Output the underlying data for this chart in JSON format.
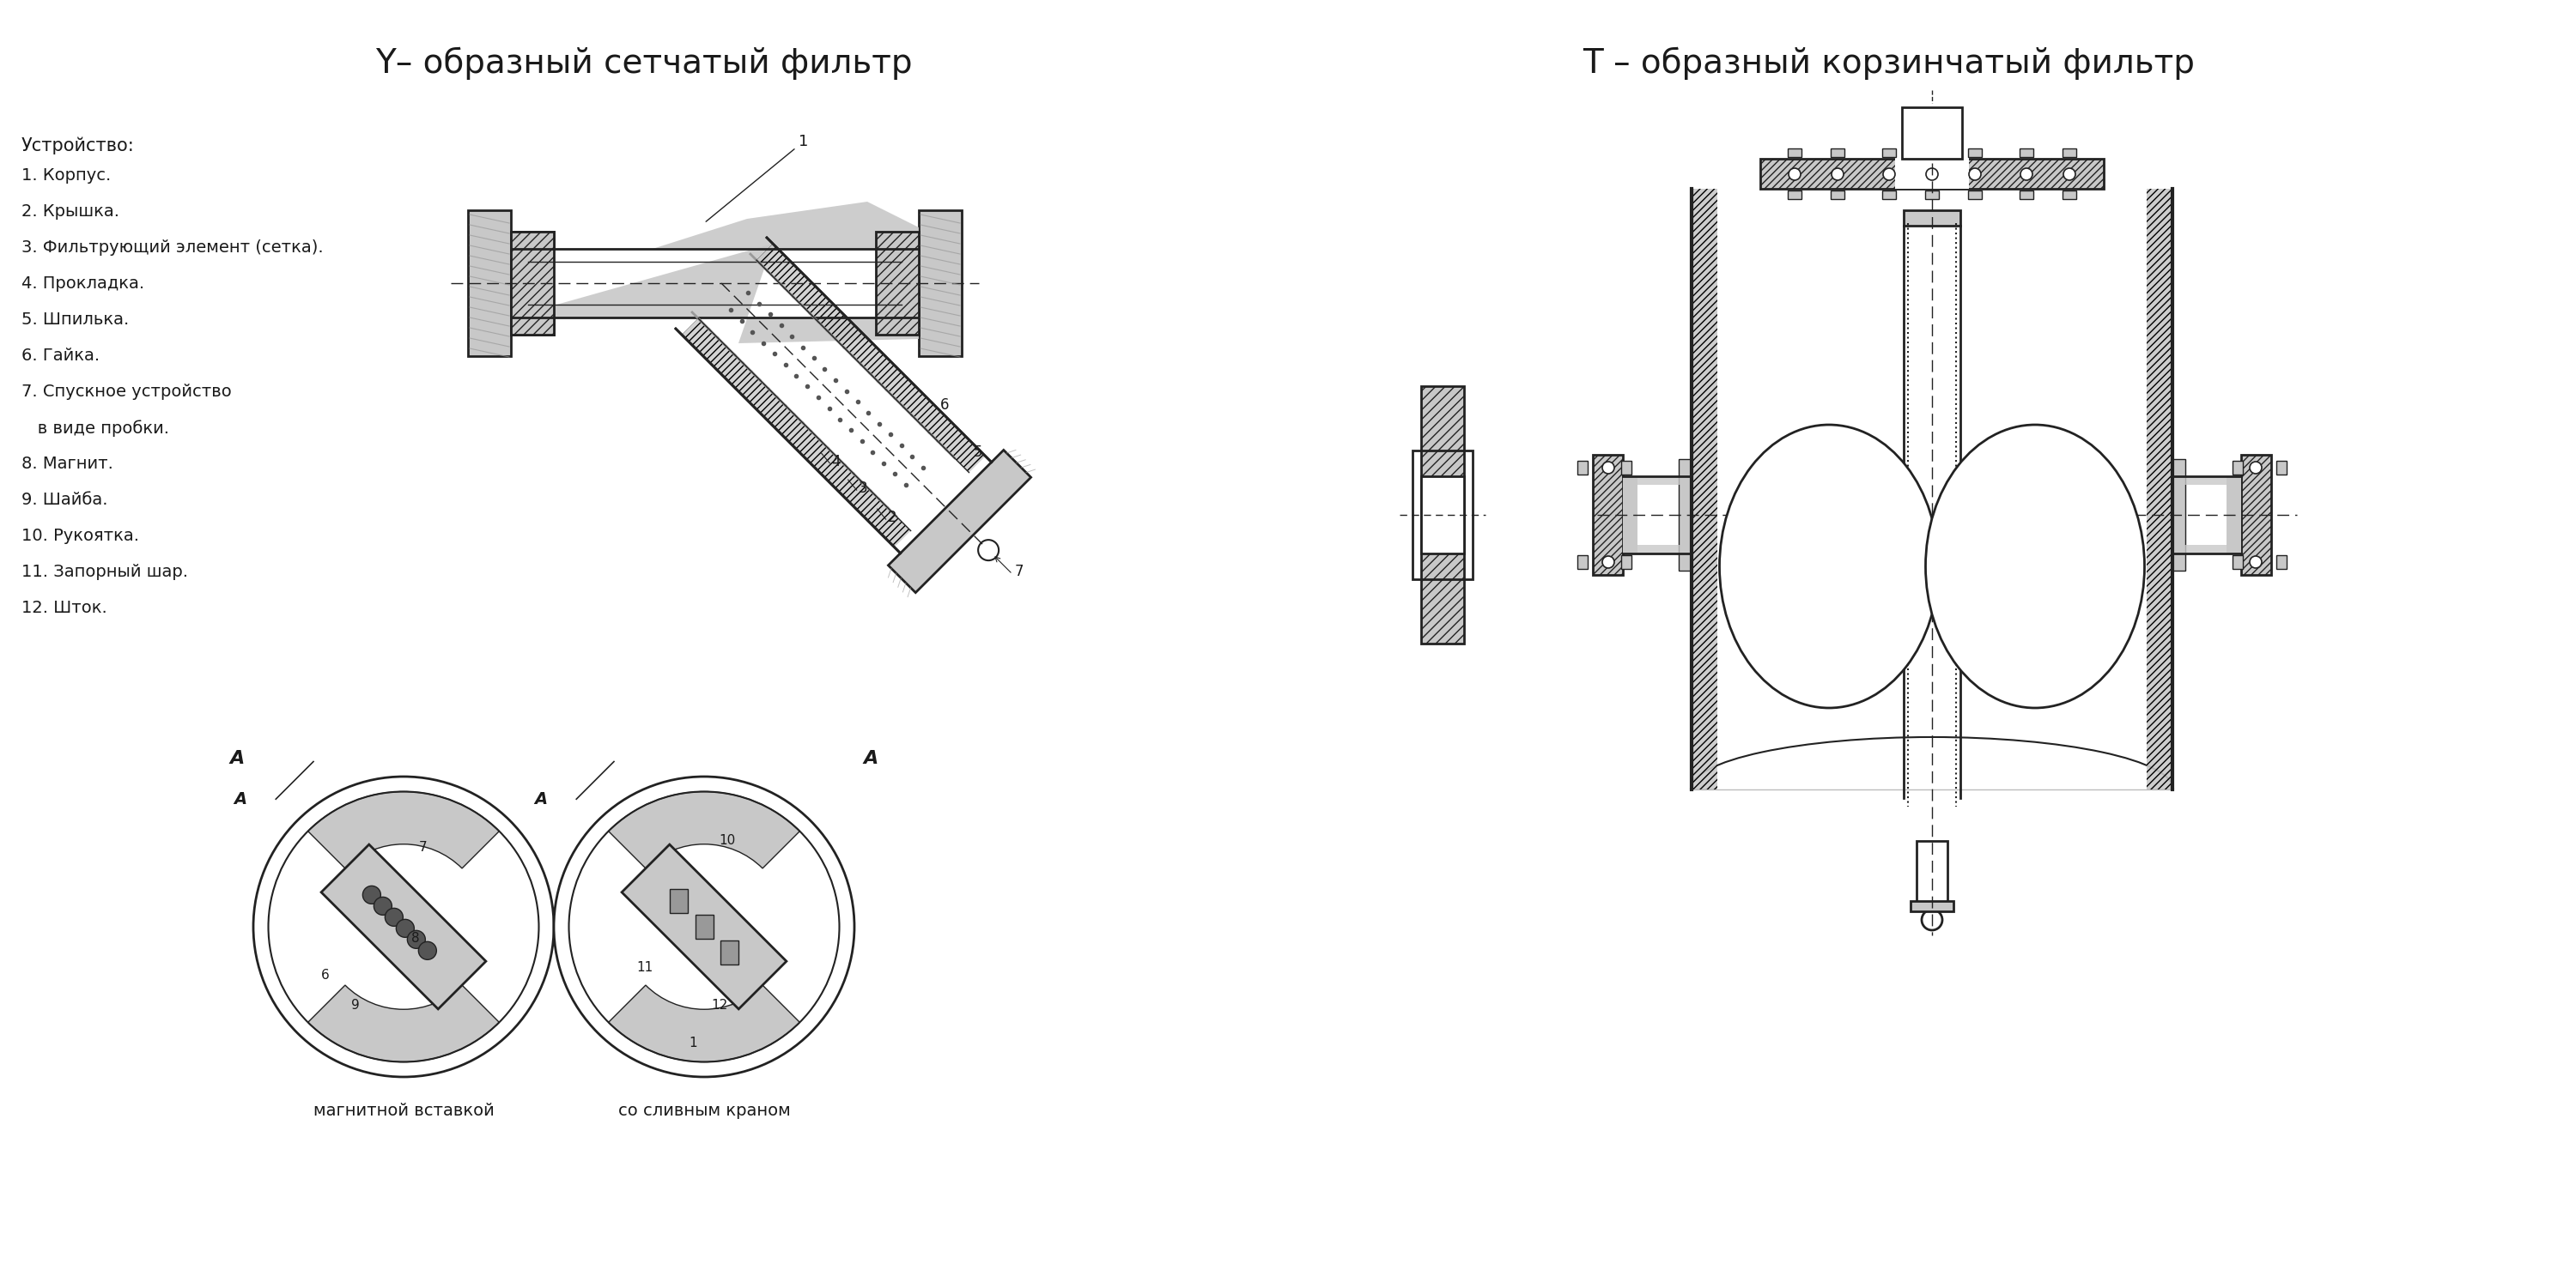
{
  "title_left": "Y– образный сетчатый фильтр",
  "title_right": "Т – образный корзинчатый фильтр",
  "legend_title": "Устройство:",
  "legend_items": [
    "1. Корпус.",
    "2. Крышка.",
    "3. Фильтрующий элемент (сетка).",
    "4. Прокладка.",
    "5. Шпилька.",
    "6. Гайка.",
    "7. Спускное устройство",
    "   в виде пробки.",
    "8. Магнит.",
    "9. Шайба.",
    "10. Рукоятка.",
    "11. Запорный шар.",
    "12. Шток."
  ],
  "caption_left": "магнитной вставкой",
  "caption_right": "со сливным краном",
  "bg_color": "#ffffff",
  "text_color": "#1a1a1a",
  "gray_light": "#c8c8c8",
  "gray_mid": "#999999",
  "gray_dark": "#555555",
  "line_color": "#222222"
}
